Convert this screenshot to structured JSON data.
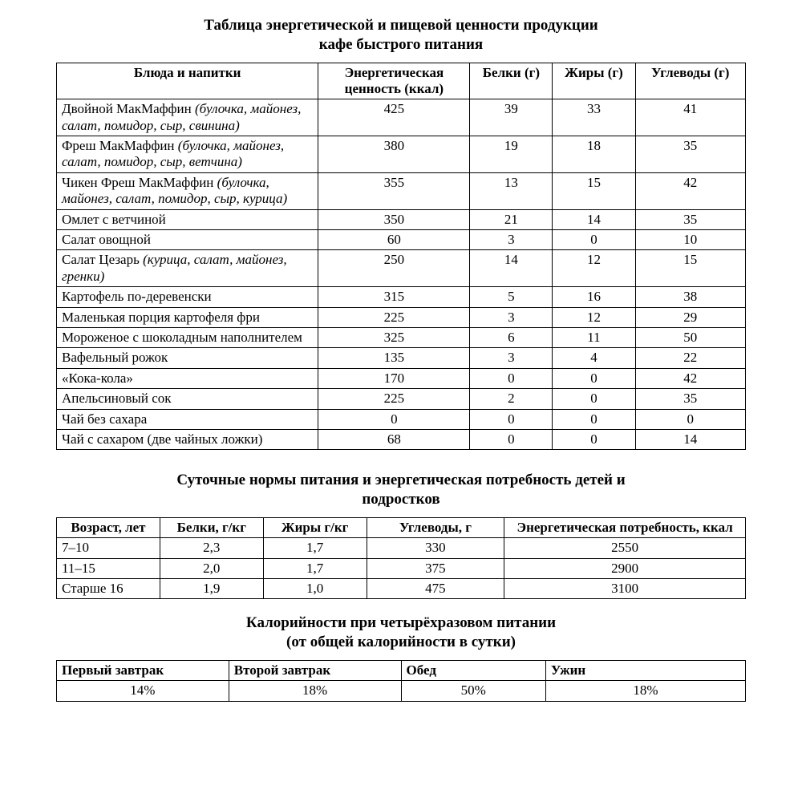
{
  "styles": {
    "font_family": "Times New Roman",
    "title_fontsize_pt": 14,
    "body_fontsize_pt": 12,
    "text_color": "#000000",
    "background_color": "#ffffff",
    "border_color": "#000000"
  },
  "table1": {
    "title_line1": "Таблица энергетической и пищевой ценности продукции",
    "title_line2": "кафе быстрого питания",
    "type": "table",
    "columns": [
      {
        "label": "Блюда и напитки",
        "align": "left",
        "width_pct": 38
      },
      {
        "label": "Энергетическая ценность (ккал)",
        "align": "center",
        "width_pct": 22
      },
      {
        "label": "Белки (г)",
        "align": "center",
        "width_pct": 12
      },
      {
        "label": "Жиры (г)",
        "align": "center",
        "width_pct": 12
      },
      {
        "label": "Углеводы (г)",
        "align": "center",
        "width_pct": 16
      }
    ],
    "rows": [
      {
        "name": "Двойной МакМаффин",
        "italic": "(булочка, майонез, салат, помидор, сыр, свинина)",
        "energy": "425",
        "protein": "39",
        "fat": "33",
        "carbs": "41"
      },
      {
        "name": "Фреш МакМаффин",
        "italic": "(булочка, майонез, салат, помидор, сыр, ветчина)",
        "energy": "380",
        "protein": "19",
        "fat": "18",
        "carbs": "35"
      },
      {
        "name": "Чикен Фреш МакМаффин",
        "italic": "(булочка, майонез, салат, помидор, сыр, курица)",
        "energy": "355",
        "protein": "13",
        "fat": "15",
        "carbs": "42"
      },
      {
        "name": "Омлет с ветчиной",
        "italic": "",
        "energy": "350",
        "protein": "21",
        "fat": "14",
        "carbs": "35"
      },
      {
        "name": "Салат овощной",
        "italic": "",
        "energy": "60",
        "protein": "3",
        "fat": "0",
        "carbs": "10"
      },
      {
        "name": "Салат Цезарь",
        "italic": "(курица, салат, майонез, гренки)",
        "energy": "250",
        "protein": "14",
        "fat": "12",
        "carbs": "15"
      },
      {
        "name": "Картофель по-деревенски",
        "italic": "",
        "energy": "315",
        "protein": "5",
        "fat": "16",
        "carbs": "38"
      },
      {
        "name": "Маленькая порция картофеля фри",
        "italic": "",
        "energy": "225",
        "protein": "3",
        "fat": "12",
        "carbs": "29"
      },
      {
        "name": "Мороженое с шоколадным наполнителем",
        "italic": "",
        "energy": "325",
        "protein": "6",
        "fat": "11",
        "carbs": "50"
      },
      {
        "name": "Вафельный рожок",
        "italic": "",
        "energy": "135",
        "protein": "3",
        "fat": "4",
        "carbs": "22"
      },
      {
        "name": "«Кока-кола»",
        "italic": "",
        "energy": "170",
        "protein": "0",
        "fat": "0",
        "carbs": "42"
      },
      {
        "name": "Апельсиновый сок",
        "italic": "",
        "energy": "225",
        "protein": "2",
        "fat": "0",
        "carbs": "35"
      },
      {
        "name": "Чай без сахара",
        "italic": "",
        "energy": "0",
        "protein": "0",
        "fat": "0",
        "carbs": "0"
      },
      {
        "name": "Чай с сахаром (две чайных ложки)",
        "italic": "",
        "energy": "68",
        "protein": "0",
        "fat": "0",
        "carbs": "14"
      }
    ]
  },
  "table2": {
    "title_line1": "Суточные нормы питания и энергетическая потребность детей и",
    "title_line2": "подростков",
    "type": "table",
    "columns": [
      {
        "label": "Возраст, лет",
        "align": "left",
        "width_pct": 15
      },
      {
        "label": "Белки, г/кг",
        "align": "center",
        "width_pct": 15
      },
      {
        "label": "Жиры г/кг",
        "align": "center",
        "width_pct": 15
      },
      {
        "label": "Углеводы, г",
        "align": "center",
        "width_pct": 20
      },
      {
        "label": "Энергетическая потребность, ккал",
        "align": "center",
        "width_pct": 35
      }
    ],
    "rows": [
      {
        "age": "7–10",
        "protein": "2,3",
        "fat": "1,7",
        "carbs": "330",
        "energy": "2550"
      },
      {
        "age": "11–15",
        "protein": "2,0",
        "fat": "1,7",
        "carbs": "375",
        "energy": "2900"
      },
      {
        "age": "Старше 16",
        "protein": "1,9",
        "fat": "1,0",
        "carbs": "475",
        "energy": "3100"
      }
    ]
  },
  "table3": {
    "title_line1": "Калорийности при четырёхразовом питании",
    "title_line2": "(от общей калорийности в сутки)",
    "type": "table",
    "columns": [
      {
        "label": "Первый завтрак",
        "align": "left",
        "width_pct": 25
      },
      {
        "label": "Второй завтрак",
        "align": "left",
        "width_pct": 25
      },
      {
        "label": "Обед",
        "align": "left",
        "width_pct": 21
      },
      {
        "label": "Ужин",
        "align": "left",
        "width_pct": 29
      }
    ],
    "rows": [
      {
        "b1": "14%",
        "b2": "18%",
        "lunch": "50%",
        "dinner": "18%"
      }
    ]
  }
}
